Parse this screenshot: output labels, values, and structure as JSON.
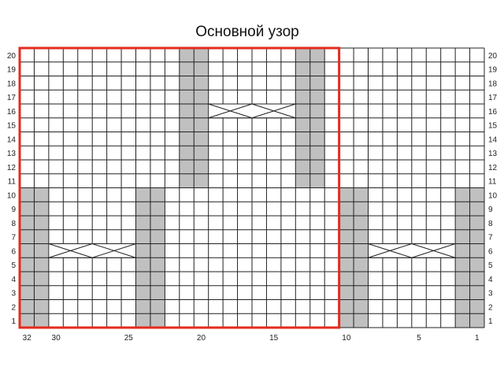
{
  "title": "Основной узор",
  "chart": {
    "columns": 32,
    "rows": 20,
    "row_labels": [
      "1",
      "2",
      "3",
      "4",
      "5",
      "6",
      "7",
      "8",
      "9",
      "10",
      "11",
      "12",
      "13",
      "14",
      "15",
      "16",
      "17",
      "18",
      "19",
      "20"
    ],
    "column_labels": [
      "32",
      "30",
      "25",
      "20",
      "15",
      "10",
      "5",
      "1"
    ],
    "column_label_positions": [
      32,
      30,
      25,
      20,
      15,
      10,
      5,
      1
    ],
    "shaded_blocks": [
      {
        "cols": [
          32,
          31
        ],
        "rows": [
          1,
          10
        ]
      },
      {
        "cols": [
          24,
          23
        ],
        "rows": [
          1,
          10
        ]
      },
      {
        "cols": [
          10,
          9
        ],
        "rows": [
          1,
          10
        ]
      },
      {
        "cols": [
          2,
          1
        ],
        "rows": [
          1,
          10
        ]
      },
      {
        "cols": [
          21,
          20
        ],
        "rows": [
          11,
          20
        ]
      },
      {
        "cols": [
          13,
          12
        ],
        "rows": [
          11,
          20
        ]
      }
    ],
    "cables": [
      {
        "cols": [
          30,
          25
        ],
        "row": 6
      },
      {
        "cols": [
          8,
          3
        ],
        "row": 6
      },
      {
        "cols": [
          19,
          14
        ],
        "row": 16
      }
    ],
    "pattern_repeat": {
      "cols": [
        32,
        11
      ],
      "rows": [
        1,
        20
      ]
    },
    "colors": {
      "grid": "#222222",
      "shade": "#c0c0c0",
      "repeat_border": "#e32b1e"
    }
  }
}
